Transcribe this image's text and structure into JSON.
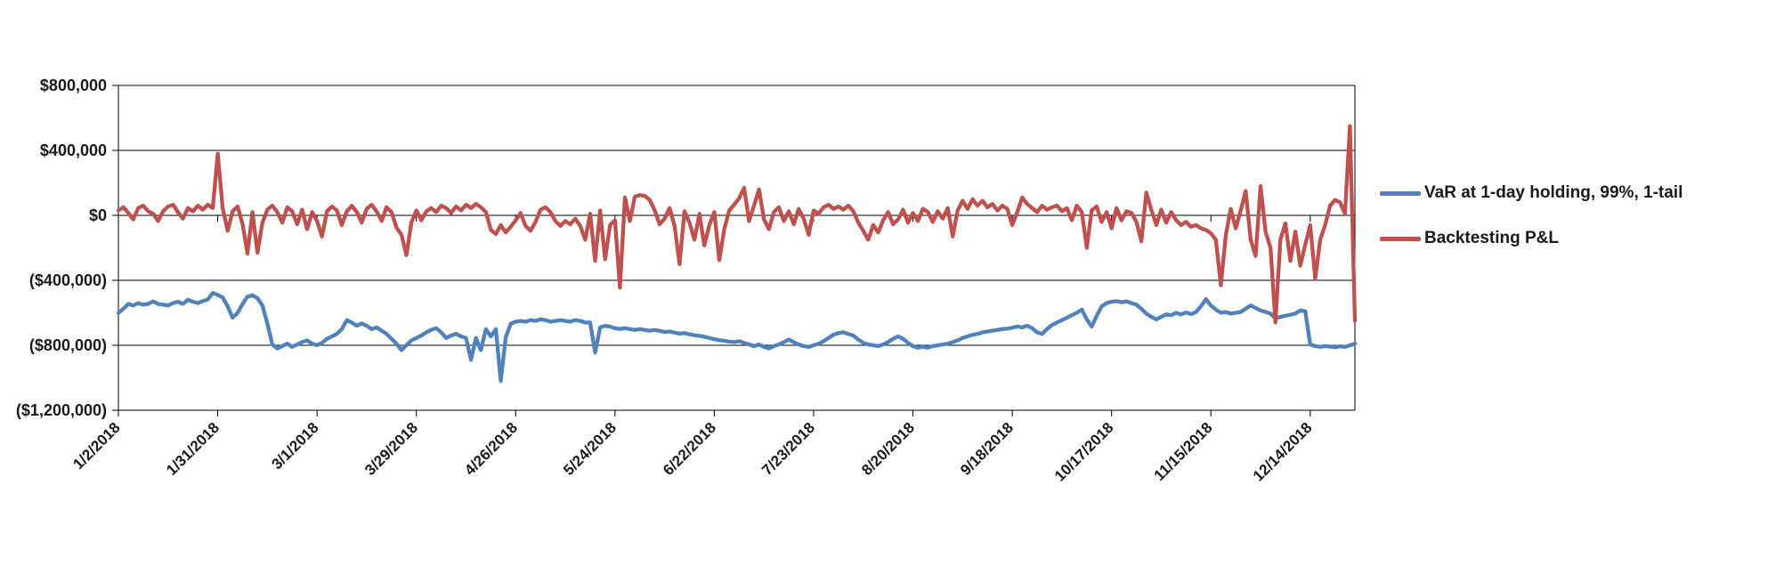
{
  "chart_data": {
    "type": "line",
    "title": "",
    "xlabel": "",
    "ylabel": "",
    "grid": true,
    "legend_position": "right",
    "x_points": 250,
    "x_unit": "daily observations (trading days of 2018)",
    "x_tick_labels": [
      "1/2/2018",
      "1/31/2018",
      "3/1/2018",
      "3/29/2018",
      "4/26/2018",
      "5/24/2018",
      "6/22/2018",
      "7/23/2018",
      "8/20/2018",
      "9/18/2018",
      "10/17/2018",
      "11/15/2018",
      "12/14/2018"
    ],
    "x_tick_days": [
      0,
      20,
      40,
      60,
      80,
      100,
      120,
      140,
      160,
      180,
      200,
      220,
      240
    ],
    "y_tick_labels": [
      "$800,000",
      "$400,000",
      "$0",
      "($400,000)",
      "($800,000)",
      "($1,200,000)"
    ],
    "y_tick_values": [
      800000,
      400000,
      0,
      -400000,
      -800000,
      -1200000
    ],
    "ylim": [
      -1200000,
      800000
    ],
    "axis_color": "#000000",
    "text_color": "#1a1a1a",
    "series": [
      {
        "name": "VaR at 1-day holding, 99%, 1-tail",
        "color": "#4F81BD",
        "values": [
          -600000,
          -575000,
          -545000,
          -555000,
          -540000,
          -550000,
          -545000,
          -530000,
          -545000,
          -550000,
          -555000,
          -540000,
          -532000,
          -545000,
          -520000,
          -532000,
          -540000,
          -528000,
          -518000,
          -478000,
          -490000,
          -505000,
          -560000,
          -630000,
          -600000,
          -545000,
          -500000,
          -492000,
          -510000,
          -555000,
          -665000,
          -795000,
          -820000,
          -805000,
          -790000,
          -810000,
          -795000,
          -780000,
          -770000,
          -790000,
          -800000,
          -785000,
          -760000,
          -745000,
          -730000,
          -700000,
          -645000,
          -660000,
          -680000,
          -665000,
          -680000,
          -700000,
          -690000,
          -710000,
          -730000,
          -760000,
          -790000,
          -830000,
          -800000,
          -770000,
          -755000,
          -740000,
          -720000,
          -705000,
          -695000,
          -720000,
          -755000,
          -740000,
          -730000,
          -745000,
          -755000,
          -890000,
          -755000,
          -830000,
          -700000,
          -745000,
          -700000,
          -1020000,
          -750000,
          -668000,
          -655000,
          -650000,
          -655000,
          -645000,
          -650000,
          -640000,
          -645000,
          -655000,
          -650000,
          -645000,
          -650000,
          -655000,
          -645000,
          -650000,
          -660000,
          -660000,
          -845000,
          -690000,
          -680000,
          -685000,
          -695000,
          -700000,
          -695000,
          -700000,
          -705000,
          -700000,
          -705000,
          -710000,
          -705000,
          -712000,
          -718000,
          -715000,
          -722000,
          -728000,
          -725000,
          -732000,
          -738000,
          -742000,
          -748000,
          -755000,
          -762000,
          -768000,
          -772000,
          -778000,
          -780000,
          -775000,
          -785000,
          -795000,
          -805000,
          -795000,
          -810000,
          -820000,
          -805000,
          -795000,
          -780000,
          -765000,
          -780000,
          -795000,
          -805000,
          -810000,
          -800000,
          -790000,
          -775000,
          -755000,
          -735000,
          -725000,
          -720000,
          -730000,
          -740000,
          -765000,
          -785000,
          -795000,
          -800000,
          -805000,
          -795000,
          -780000,
          -760000,
          -745000,
          -760000,
          -785000,
          -805000,
          -815000,
          -810000,
          -815000,
          -805000,
          -800000,
          -795000,
          -790000,
          -780000,
          -770000,
          -755000,
          -745000,
          -735000,
          -730000,
          -720000,
          -715000,
          -710000,
          -705000,
          -700000,
          -698000,
          -692000,
          -684000,
          -690000,
          -680000,
          -695000,
          -720000,
          -730000,
          -700000,
          -675000,
          -660000,
          -645000,
          -630000,
          -615000,
          -600000,
          -580000,
          -640000,
          -685000,
          -620000,
          -560000,
          -540000,
          -532000,
          -528000,
          -535000,
          -530000,
          -540000,
          -550000,
          -575000,
          -605000,
          -625000,
          -640000,
          -625000,
          -610000,
          -615000,
          -600000,
          -610000,
          -598000,
          -608000,
          -595000,
          -560000,
          -515000,
          -555000,
          -580000,
          -600000,
          -595000,
          -605000,
          -600000,
          -595000,
          -575000,
          -555000,
          -570000,
          -585000,
          -595000,
          -605000,
          -635000,
          -625000,
          -618000,
          -612000,
          -605000,
          -585000,
          -590000,
          -795000,
          -805000,
          -810000,
          -805000,
          -808000,
          -812000,
          -806000,
          -810000,
          -800000,
          -790000
        ]
      },
      {
        "name": "Backtesting P&L",
        "color": "#C0504D",
        "values": [
          30000,
          50000,
          15000,
          -25000,
          45000,
          60000,
          25000,
          10000,
          -35000,
          25000,
          55000,
          65000,
          20000,
          -20000,
          45000,
          25000,
          60000,
          35000,
          65000,
          45000,
          380000,
          45000,
          -95000,
          25000,
          55000,
          -55000,
          -235000,
          20000,
          -230000,
          -45000,
          35000,
          60000,
          20000,
          -45000,
          50000,
          25000,
          -55000,
          35000,
          -85000,
          20000,
          -35000,
          -130000,
          25000,
          55000,
          30000,
          -60000,
          25000,
          60000,
          20000,
          -45000,
          40000,
          65000,
          25000,
          -35000,
          50000,
          20000,
          -75000,
          -120000,
          -245000,
          -45000,
          30000,
          -30000,
          25000,
          45000,
          20000,
          60000,
          45000,
          15000,
          55000,
          30000,
          65000,
          45000,
          70000,
          50000,
          20000,
          -90000,
          -115000,
          -60000,
          -105000,
          -70000,
          -30000,
          15000,
          -65000,
          -95000,
          -40000,
          35000,
          50000,
          20000,
          -35000,
          -65000,
          -35000,
          -55000,
          -20000,
          -65000,
          -150000,
          10000,
          -280000,
          30000,
          -270000,
          -60000,
          -30000,
          -445000,
          110000,
          -35000,
          115000,
          125000,
          120000,
          95000,
          30000,
          -55000,
          -20000,
          45000,
          -65000,
          -300000,
          25000,
          -45000,
          -150000,
          10000,
          -185000,
          -60000,
          20000,
          -275000,
          -85000,
          30000,
          65000,
          105000,
          170000,
          -35000,
          60000,
          160000,
          -25000,
          -85000,
          20000,
          50000,
          -35000,
          25000,
          -55000,
          40000,
          -20000,
          -120000,
          30000,
          10000,
          50000,
          65000,
          40000,
          55000,
          35000,
          60000,
          25000,
          -45000,
          -95000,
          -150000,
          -60000,
          -105000,
          -30000,
          20000,
          -55000,
          -25000,
          35000,
          -45000,
          15000,
          -35000,
          40000,
          20000,
          -40000,
          25000,
          -20000,
          45000,
          -130000,
          30000,
          90000,
          40000,
          100000,
          60000,
          90000,
          50000,
          70000,
          30000,
          60000,
          40000,
          -60000,
          20000,
          110000,
          70000,
          45000,
          20000,
          60000,
          35000,
          50000,
          60000,
          25000,
          45000,
          -30000,
          60000,
          20000,
          -200000,
          30000,
          55000,
          -40000,
          20000,
          -80000,
          45000,
          -30000,
          25000,
          15000,
          -40000,
          -160000,
          140000,
          35000,
          -60000,
          35000,
          -45000,
          20000,
          -30000,
          -60000,
          -40000,
          -70000,
          -60000,
          -80000,
          -90000,
          -110000,
          -150000,
          -430000,
          -120000,
          40000,
          -80000,
          30000,
          150000,
          -150000,
          -250000,
          180000,
          -100000,
          -200000,
          -660000,
          -150000,
          -50000,
          -280000,
          -100000,
          -310000,
          -180000,
          -60000,
          -390000,
          -150000,
          -60000,
          60000,
          95000,
          80000,
          10000,
          550000,
          -650000
        ]
      }
    ]
  }
}
